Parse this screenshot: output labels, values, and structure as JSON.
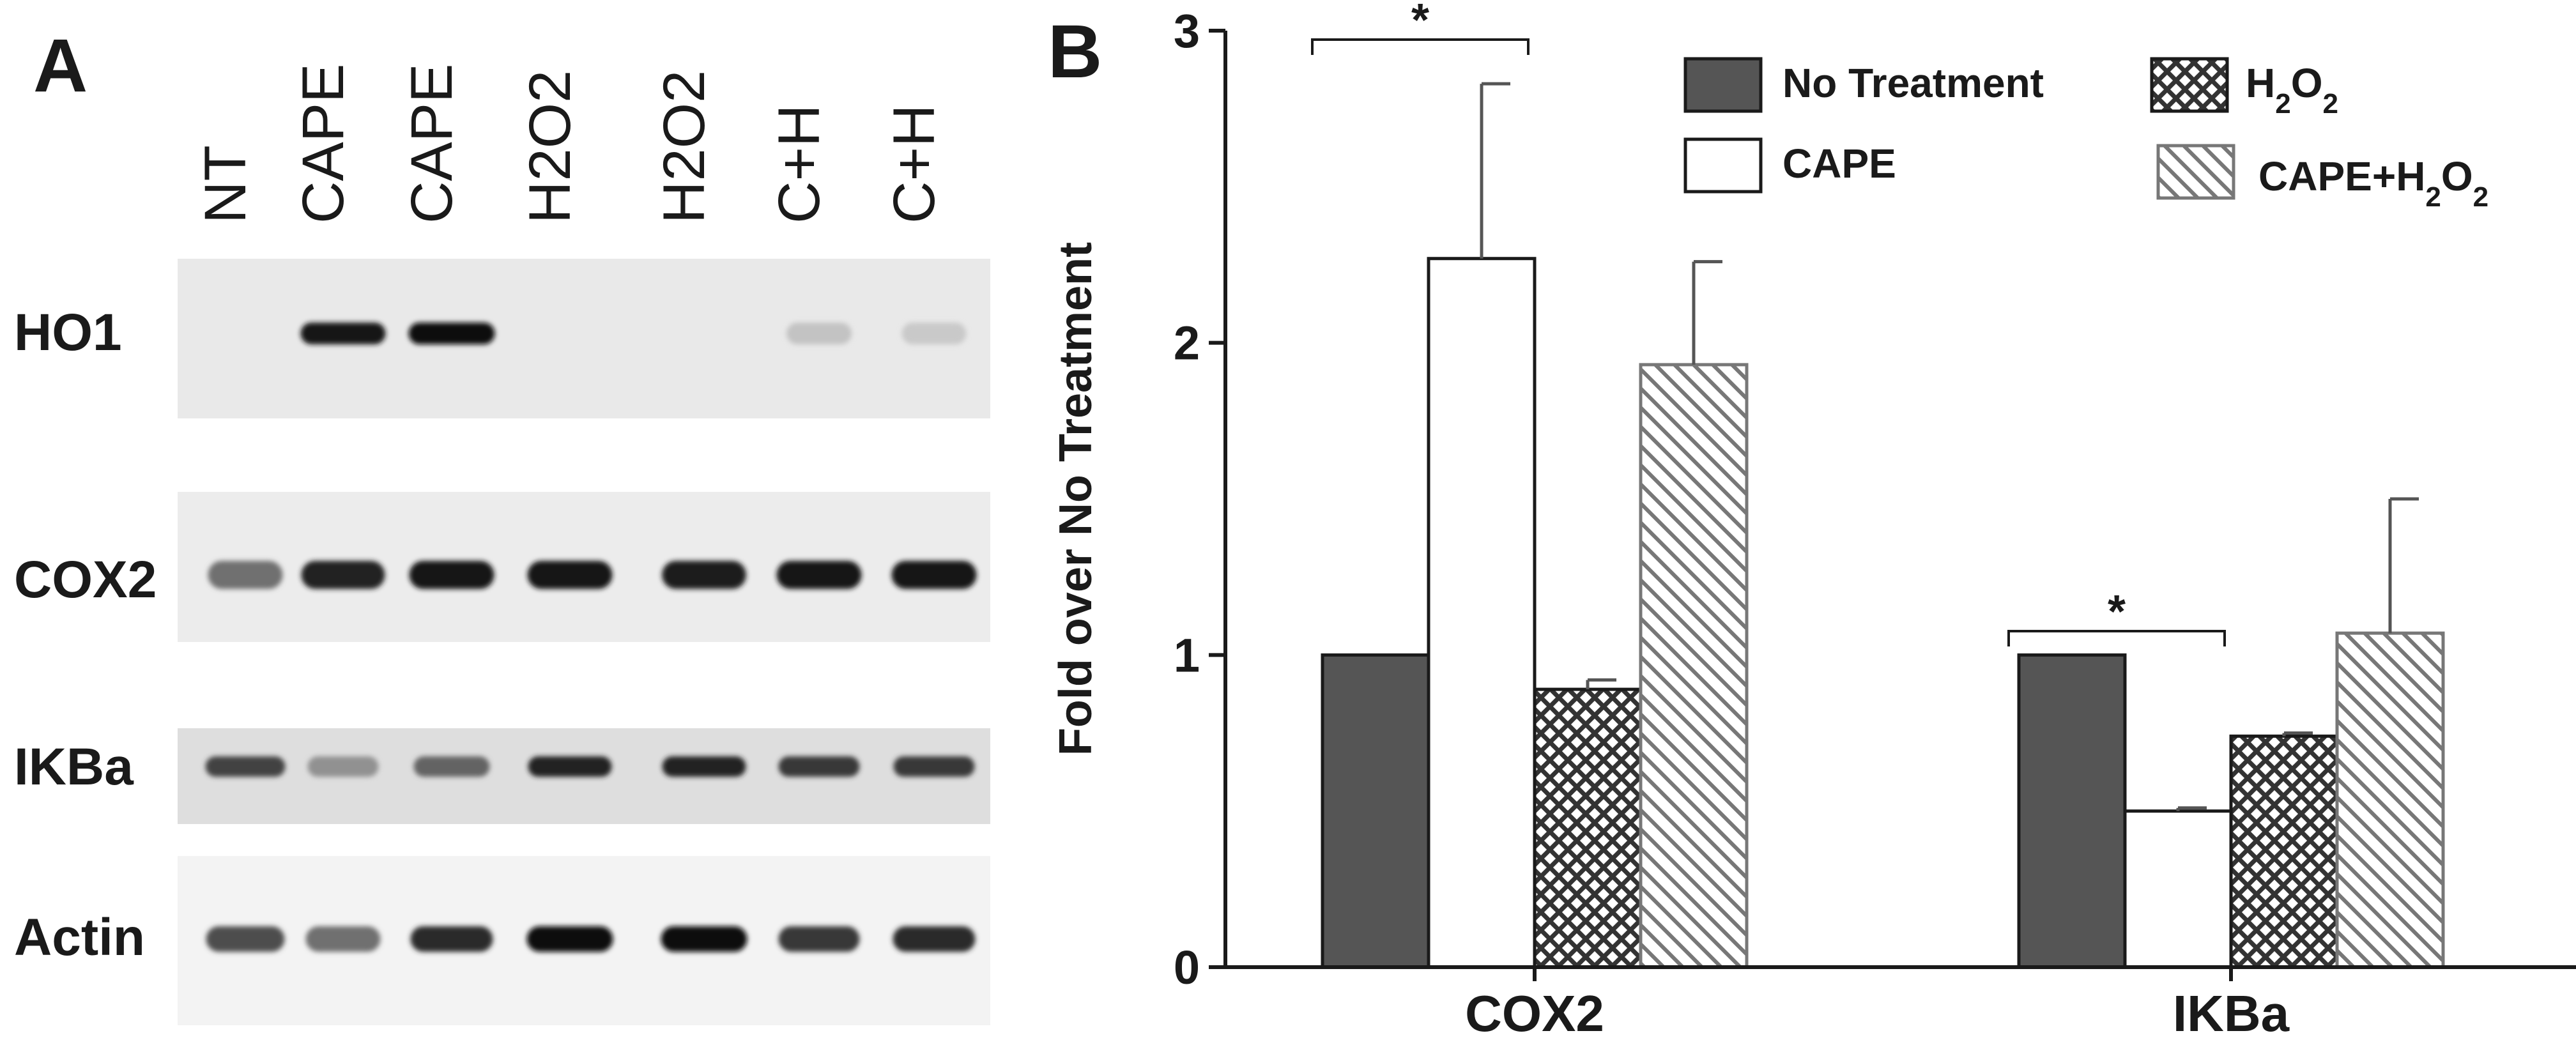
{
  "panel_a": {
    "letter": "A",
    "lanes": [
      "NT",
      "CAPE",
      "CAPE",
      "H2O2",
      "H2O2",
      "C+H",
      "C+H"
    ],
    "rows": [
      {
        "label": "HO1",
        "intensities": [
          0.02,
          0.95,
          1.0,
          0.0,
          0.0,
          0.18,
          0.15
        ]
      },
      {
        "label": "COX2",
        "intensities": [
          0.55,
          0.9,
          0.95,
          0.95,
          0.92,
          0.95,
          0.95
        ]
      },
      {
        "label": "IKBa",
        "intensities": [
          0.75,
          0.4,
          0.6,
          0.9,
          0.9,
          0.8,
          0.8
        ]
      },
      {
        "label": "Actin",
        "intensities": [
          0.7,
          0.55,
          0.85,
          1.0,
          1.0,
          0.8,
          0.85
        ]
      }
    ]
  },
  "panel_b": {
    "letter": "B",
    "colors": {
      "no_treatment": "#555555",
      "outline": "#1a1a1a",
      "hatch": "#333333"
    }
  },
  "chart_data": {
    "type": "bar",
    "title": "",
    "xlabel": "",
    "ylabel": "Fold over No Treatment",
    "categories": [
      "COX2",
      "IKBa"
    ],
    "ylim": [
      0,
      3
    ],
    "yticks": [
      "0",
      "1",
      "2",
      "3"
    ],
    "series": [
      {
        "name": "No Treatment",
        "values": [
          1.0,
          1.0
        ],
        "errors": [
          0,
          0
        ],
        "pattern": "solid"
      },
      {
        "name": "CAPE",
        "values": [
          2.27,
          0.5
        ],
        "errors": [
          0.56,
          0.01
        ],
        "pattern": "open"
      },
      {
        "name_parts": [
          "H",
          "2",
          "O",
          "2"
        ],
        "values": [
          0.89,
          0.74
        ],
        "errors": [
          0.03,
          0.01
        ],
        "pattern": "crosshatch"
      },
      {
        "name_parts": [
          "CAPE+H",
          "2",
          "O",
          "2"
        ],
        "values": [
          1.93,
          1.07
        ],
        "errors": [
          0.33,
          0.43
        ],
        "pattern": "diagonal"
      }
    ],
    "significance": [
      {
        "category": "COX2",
        "between": [
          "No Treatment",
          "CAPE"
        ],
        "label": "*"
      },
      {
        "category": "IKBa",
        "between": [
          "No Treatment",
          "CAPE"
        ],
        "label": "*"
      }
    ],
    "legend_position": "top-right",
    "grid": false
  }
}
